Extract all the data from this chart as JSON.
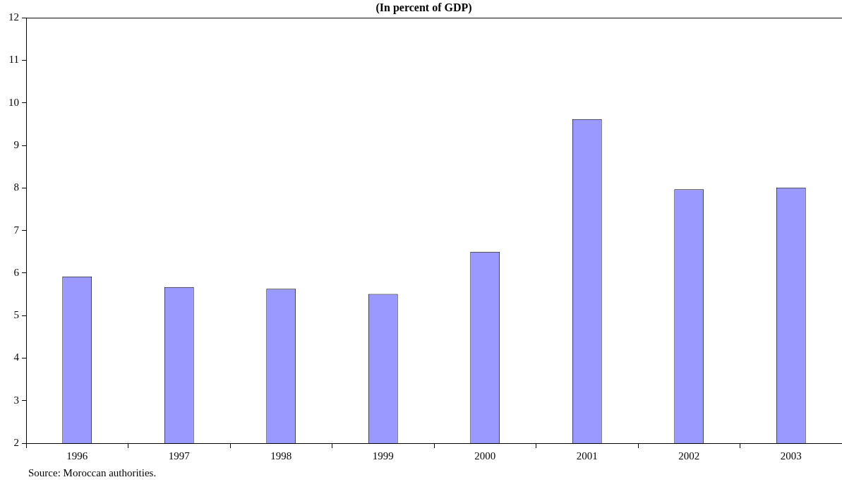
{
  "chart_data": {
    "type": "bar",
    "title": "(In percent of GDP)",
    "categories": [
      "1996",
      "1997",
      "1998",
      "1999",
      "2000",
      "2001",
      "2002",
      "2003"
    ],
    "values": [
      5.92,
      5.67,
      5.63,
      5.51,
      6.5,
      9.62,
      7.97,
      8.01
    ],
    "color": "#9999ff",
    "ylim": [
      2,
      12
    ],
    "yticks": [
      2,
      3,
      4,
      5,
      6,
      7,
      8,
      9,
      10,
      11,
      12
    ],
    "grid": false,
    "legend": false,
    "annotations": [
      "Source: Moroccan authorities."
    ]
  }
}
